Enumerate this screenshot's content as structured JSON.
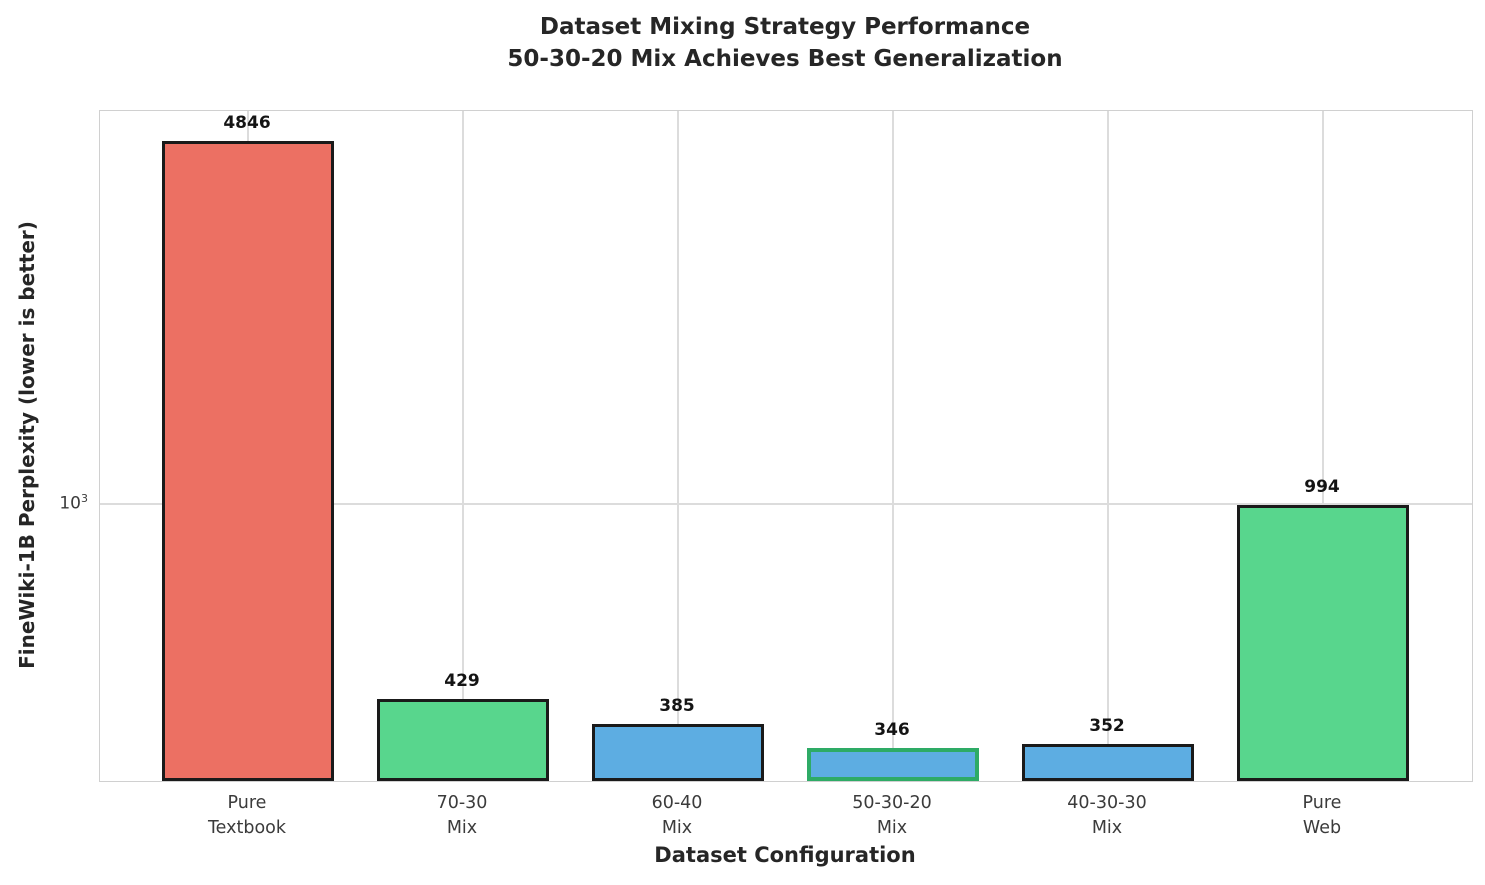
{
  "title": "Dataset Mixing Strategy Performance\n50-30-20 Mix Achieves Best Generalization",
  "chart_data": {
    "type": "bar",
    "title": "Dataset Mixing Strategy Performance\n50-30-20 Mix Achieves Best Generalization",
    "xlabel": "Dataset Configuration",
    "ylabel": "FineWiki-1B Perplexity (lower is better)",
    "yscale": "log",
    "ylim": [
      300,
      5520
    ],
    "grid": true,
    "categories": [
      "Pure\nTextbook",
      "70-30\nMix",
      "60-40\nMix",
      "50-30-20\nMix",
      "40-30-30\nMix",
      "Pure\nWeb"
    ],
    "values": [
      4846,
      429,
      385,
      346,
      352,
      994
    ],
    "value_labels": [
      "4846",
      "429",
      "385",
      "346",
      "352",
      "994"
    ],
    "bar_fill_colors": [
      "#ec7063",
      "#58d68d",
      "#5dade2",
      "#5dade2",
      "#5dade2",
      "#58d68d"
    ],
    "bar_edge_colors": [
      "#1a1a1a",
      "#1a1a1a",
      "#1a1a1a",
      "#2eab66",
      "#1a1a1a",
      "#1a1a1a"
    ],
    "highlight_index": 3,
    "ytick": {
      "base": "10",
      "exp": "3",
      "value": 1000
    },
    "colors": {
      "grid": "#dcdcdc",
      "spine": "#d0d0d0",
      "text": "#262626",
      "tick_text": "#3b3b3b",
      "value_label_text": "#141414"
    }
  }
}
